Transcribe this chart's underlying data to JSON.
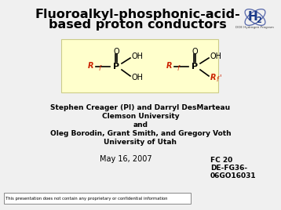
{
  "title_line1": "Fluoroalkyl-phosphonic-acid-",
  "title_line2": "based proton conductors",
  "title_fontsize": 11.5,
  "title_color": "#000000",
  "bg_color": "#f0f0f0",
  "chem_box_color": "#ffffcc",
  "author_line1": "Stephen Creager (PI) and Darryl DesMarteau",
  "author_line2": "Clemson University",
  "author_line3": "and",
  "author_line4": "Oleg Borodin, Grant Smith, and Gregory Voth",
  "author_line5": "University of Utah",
  "date_line": "May 16, 2007",
  "fc_text": "FC 20",
  "grant_line1": "DE-FG36-",
  "grant_line2": "06GO16031",
  "disclaimer": "This presentation does not contain any proprietary or confidential information",
  "h2_color": "#1a3a8a",
  "rf_color": "#cc2200",
  "bond_color": "#000000"
}
